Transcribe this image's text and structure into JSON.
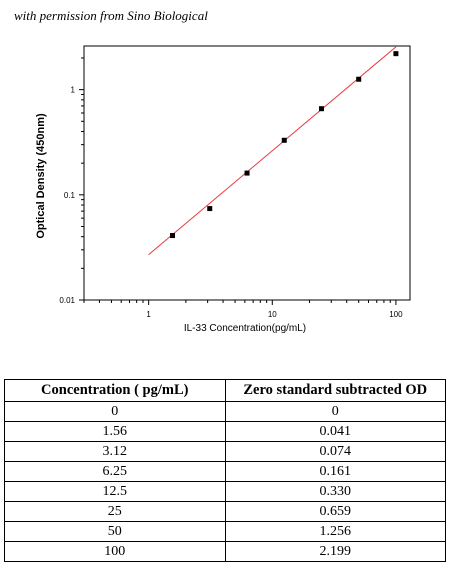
{
  "credit_text": "with permission from Sino Biological",
  "chart_data": {
    "type": "scatter",
    "xlabel": "IL-33  Concentration(pg/mL)",
    "ylabel": "Optical Density (450nm)",
    "x_scale": "log",
    "y_scale": "log",
    "xlim": [
      0.3,
      130
    ],
    "ylim": [
      0.01,
      2.6
    ],
    "xticks": [
      1,
      10,
      100
    ],
    "xtick_labels": [
      "1",
      "10",
      "100"
    ],
    "yticks": [
      0.01,
      0.1,
      1
    ],
    "ytick_labels": [
      "0.01",
      "0.1",
      "1"
    ],
    "grid": false,
    "points": {
      "x": [
        1.56,
        3.12,
        6.25,
        12.5,
        25,
        50,
        100
      ],
      "y": [
        0.041,
        0.074,
        0.161,
        0.33,
        0.659,
        1.256,
        2.199
      ]
    },
    "fit_line": {
      "x": [
        1,
        100
      ],
      "y": [
        0.027,
        2.55
      ]
    },
    "colors": {
      "points": "#000000",
      "fit": "#e8393f",
      "axis": "#000000"
    }
  },
  "table": {
    "headers": [
      "Concentration ( pg/mL)",
      "Zero standard subtracted OD"
    ],
    "rows": [
      [
        "0",
        "0"
      ],
      [
        "1.56",
        "0.041"
      ],
      [
        "3.12",
        "0.074"
      ],
      [
        "6.25",
        "0.161"
      ],
      [
        "12.5",
        "0.330"
      ],
      [
        "25",
        "0.659"
      ],
      [
        "50",
        "1.256"
      ],
      [
        "100",
        "2.199"
      ]
    ]
  }
}
